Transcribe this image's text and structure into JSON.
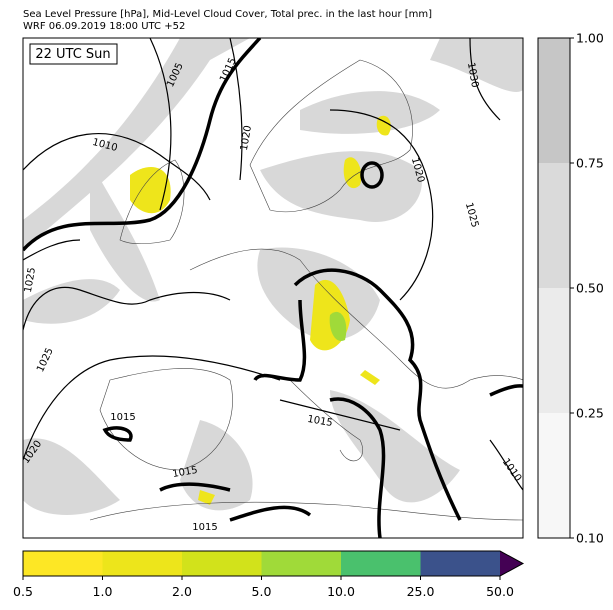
{
  "header": {
    "line1": "Sea Level Pressure [hPa], Mid-Level Cloud Cover, Total prec. in the last hour [mm]",
    "line2": "WRF 06.09.2019 18:00 UTC +52"
  },
  "map": {
    "time_label": "22 UTC Sun",
    "isobar_labels": [
      1005,
      1015,
      1010,
      1020,
      1030,
      1020,
      1025,
      1025,
      1025,
      1020,
      1015,
      1015,
      1015,
      1015,
      1010
    ]
  },
  "cloud_colorbar": {
    "ticks": [
      {
        "value": 0.1,
        "label": "0.10"
      },
      {
        "value": 0.25,
        "label": "0.25"
      },
      {
        "value": 0.5,
        "label": "0.50"
      },
      {
        "value": 0.75,
        "label": "0.75"
      },
      {
        "value": 1,
        "label": "1.00"
      }
    ],
    "colors": [
      "#f7f7f7",
      "#ebebeb",
      "#dadada",
      "#c6c6c6"
    ]
  },
  "precip_colorbar": {
    "ticks": [
      0.5,
      {
        "value": 1,
        "label": "1.0"
      },
      {
        "value": 2,
        "label": "2.0"
      },
      {
        "value": 5,
        "label": "5.0"
      },
      {
        "value": 10,
        "label": "10.0"
      },
      {
        "value": 25,
        "label": "25.0"
      },
      {
        "value": 50,
        "label": "50.0"
      }
    ],
    "colors": [
      "#fde725",
      "#ede51b",
      "#d2e21b",
      "#a0da39",
      "#4ac16d",
      "#3b528b"
    ],
    "extend_color": "#440154"
  }
}
